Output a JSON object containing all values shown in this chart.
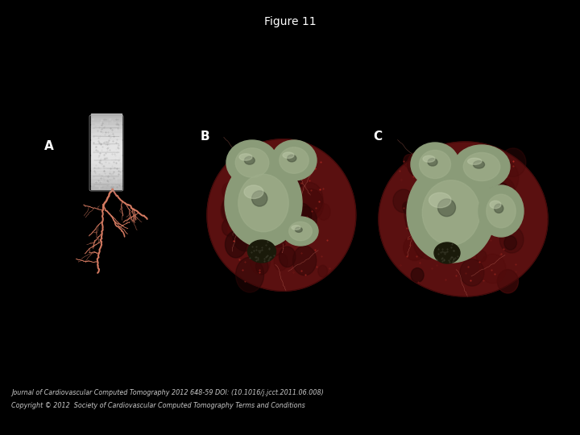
{
  "title": "Figure 11",
  "title_fontsize": 10,
  "title_color": "#ffffff",
  "background_color": "#000000",
  "footer_line1": "Journal of Cardiovascular Computed Tomography 2012 648-59 DOI: (10.1016/j.jcct.2011.06.008)",
  "footer_line2": "Copyright © 2012  Society of Cardiovascular Computed Tomography Terms and Conditions",
  "footer_fontsize": 5.8,
  "footer_color": "#c8c8c8",
  "panel_labels": [
    "A",
    "B",
    "C"
  ],
  "panel_label_color": "#ffffff",
  "panel_label_fontsize": 11
}
